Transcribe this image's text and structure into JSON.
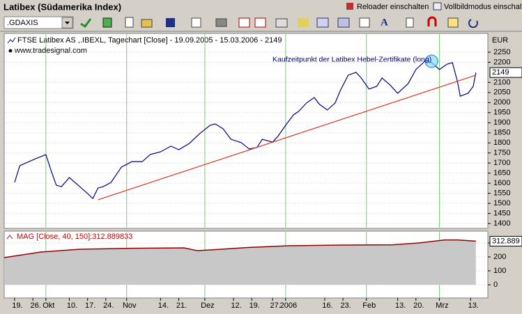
{
  "window": {
    "title": "Latibex (Südamerika Index)",
    "reloader": "Reloader einschalten",
    "fullscreen": "Vollbildmodus einschalt"
  },
  "toolbar": {
    "symbol": ".GDAXIS",
    "font_button": "A"
  },
  "chart_data": [
    {
      "type": "line",
      "legend_text": "FTSE Latibex AS ,.IBEXL, Tagechart [Close] - 19.09.2005 - 15.03.2006 - 2149",
      "source": "www.tradesignal.com",
      "y_unit": "EUR",
      "xlim": [
        -4,
        181.6
      ],
      "xticks": [
        {
          "value": 0,
          "label": "19."
        },
        {
          "value": 7,
          "label": "26."
        },
        {
          "value": 12,
          "label": "Okt"
        },
        {
          "value": 21,
          "label": "10."
        },
        {
          "value": 28,
          "label": "17."
        },
        {
          "value": 35,
          "label": "24."
        },
        {
          "value": 43,
          "label": "Nov"
        },
        {
          "value": 56,
          "label": "14."
        },
        {
          "value": 63,
          "label": "21."
        },
        {
          "value": 73,
          "label": "Dez"
        },
        {
          "value": 84,
          "label": "12."
        },
        {
          "value": 91,
          "label": "19."
        },
        {
          "value": 99,
          "label": "27."
        },
        {
          "value": 104,
          "label": "2006"
        },
        {
          "value": 119,
          "label": "16."
        },
        {
          "value": 126,
          "label": "23."
        },
        {
          "value": 135,
          "label": "Feb"
        },
        {
          "value": 147,
          "label": "13."
        },
        {
          "value": 154,
          "label": "20."
        },
        {
          "value": 163,
          "label": "Mrz"
        },
        {
          "value": 175,
          "label": "13."
        }
      ],
      "ylim": [
        1376,
        2343
      ],
      "yticks": [
        1400,
        1450,
        1500,
        1550,
        1600,
        1650,
        1700,
        1750,
        1800,
        1850,
        1900,
        1950,
        2000,
        2050,
        2100,
        2200,
        2250
      ],
      "last_value": 2149,
      "annotation": {
        "text": "Kaufzeitpunkt der Latibex Hebel-Zertifikate (long)",
        "x": 160,
        "y": 2205
      },
      "series": [
        {
          "name": "FTSE Latibex AS",
          "color": "#000080",
          "x": [
            0,
            2,
            8,
            12,
            14,
            16,
            18,
            21,
            25,
            28,
            30,
            32,
            34,
            37,
            41,
            45,
            49,
            52,
            56,
            60,
            63,
            67,
            71,
            75,
            77,
            80,
            83,
            87,
            90,
            93,
            95,
            99,
            101,
            104,
            107,
            109,
            112,
            115,
            117,
            120,
            123,
            125,
            128,
            131,
            133,
            136,
            139,
            141,
            144,
            147,
            151,
            154,
            158,
            160,
            163,
            166,
            168,
            170,
            171,
            174,
            176,
            177
          ],
          "values": [
            1604,
            1687,
            1721,
            1742,
            1663,
            1590,
            1583,
            1628,
            1583,
            1549,
            1524,
            1576,
            1583,
            1604,
            1680,
            1707,
            1707,
            1742,
            1756,
            1784,
            1766,
            1797,
            1846,
            1887,
            1894,
            1870,
            1818,
            1801,
            1770,
            1777,
            1818,
            1804,
            1832,
            1887,
            1939,
            1956,
            1998,
            2025,
            1991,
            1963,
            1998,
            2060,
            2136,
            2150,
            2122,
            2067,
            2081,
            2122,
            2088,
            2046,
            2094,
            2164,
            2212,
            2198,
            2164,
            2191,
            2198,
            2101,
            2032,
            2046,
            2081,
            2149
          ]
        },
        {
          "name": "Trend",
          "color": "#e03020",
          "x": [
            32,
            177
          ],
          "values": [
            1518,
            2136
          ]
        }
      ]
    },
    {
      "type": "area",
      "header": "MAG [Close, 40, 150]:312.889833",
      "xlim": [
        -4,
        181.6
      ],
      "ylim": [
        -95,
        385
      ],
      "yticks": [
        0,
        100,
        200,
        300
      ],
      "last_value": 312.889,
      "series": [
        {
          "name": "MAG",
          "color": "#900000",
          "x": [
            -4,
            10,
            25,
            45,
            65,
            70,
            75,
            90,
            105,
            125,
            145,
            155,
            165,
            170,
            177
          ],
          "values": [
            195,
            235,
            255,
            262,
            265,
            245,
            250,
            268,
            280,
            285,
            287,
            300,
            322,
            322,
            313
          ]
        }
      ]
    }
  ]
}
